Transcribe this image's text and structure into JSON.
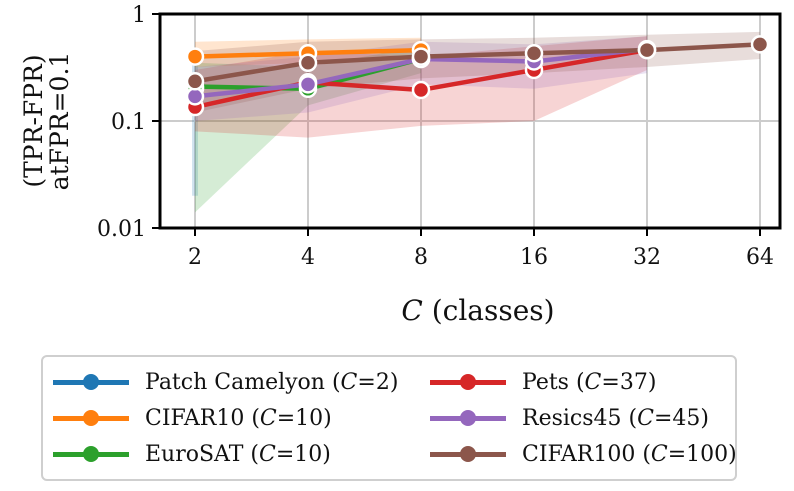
{
  "chart_data": {
    "type": "line",
    "x": [
      2,
      4,
      8,
      16,
      32,
      64
    ],
    "xticks": [
      "2",
      "4",
      "8",
      "16",
      "32",
      "64"
    ],
    "yticks": [
      "0.01",
      "0.1",
      "1"
    ],
    "xlabel_italic": "C",
    "xlabel_rest": " (classes)",
    "ylabel_line1": "(TPR-FPR)",
    "ylabel_line2": "atFPR=0.1",
    "xscale": "log2",
    "yscale": "log10",
    "xlim": [
      2,
      64
    ],
    "ylim": [
      0.01,
      1
    ],
    "grid": true,
    "legend_position": "bottom",
    "series": [
      {
        "name": "Patch Camelyon",
        "C": "2",
        "color": "#1f77b4",
        "x": [
          2
        ],
        "values": [
          0.2
        ],
        "lower": [
          0.02
        ],
        "upper": [
          0.38
        ]
      },
      {
        "name": "CIFAR10",
        "C": "10",
        "color": "#ff7f0e",
        "x": [
          2,
          4,
          8
        ],
        "values": [
          0.4,
          0.43,
          0.46
        ],
        "lower": [
          0.32,
          0.35,
          0.38
        ],
        "upper": [
          0.55,
          0.58,
          0.6
        ]
      },
      {
        "name": "EuroSAT",
        "C": "10",
        "color": "#2ca02c",
        "x": [
          2,
          4,
          8
        ],
        "values": [
          0.21,
          0.2,
          0.38
        ],
        "lower": [
          0.014,
          0.14,
          0.28
        ],
        "upper": [
          0.35,
          0.32,
          0.5
        ]
      },
      {
        "name": "Pets",
        "C": "37",
        "color": "#d62728",
        "x": [
          2,
          4,
          8,
          16,
          32
        ],
        "values": [
          0.135,
          0.23,
          0.195,
          0.3,
          0.46
        ],
        "lower": [
          0.08,
          0.07,
          0.09,
          0.1,
          0.3
        ],
        "upper": [
          0.3,
          0.45,
          0.4,
          0.5,
          0.62
        ]
      },
      {
        "name": "Resics45",
        "C": "45",
        "color": "#9467bd",
        "x": [
          2,
          4,
          8,
          16,
          32
        ],
        "values": [
          0.17,
          0.22,
          0.38,
          0.36,
          0.47
        ],
        "lower": [
          0.1,
          0.12,
          0.22,
          0.2,
          0.28
        ],
        "upper": [
          0.32,
          0.4,
          0.55,
          0.52,
          0.62
        ]
      },
      {
        "name": "CIFAR100",
        "C": "100",
        "color": "#8c564b",
        "x": [
          2,
          4,
          8,
          16,
          32,
          64
        ],
        "values": [
          0.235,
          0.35,
          0.4,
          0.43,
          0.46,
          0.52
        ],
        "lower": [
          0.12,
          0.2,
          0.25,
          0.28,
          0.32,
          0.38
        ],
        "upper": [
          0.45,
          0.55,
          0.58,
          0.6,
          0.64,
          0.68
        ]
      }
    ]
  }
}
